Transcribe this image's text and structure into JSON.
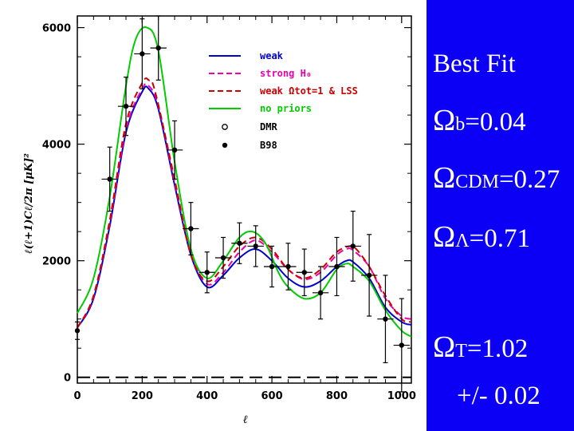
{
  "chart_data": {
    "type": "line",
    "xlabel": "ℓ",
    "ylabel": "ℓ(ℓ+1)Cℓ/2π   [μK]²",
    "xlim": [
      0,
      1030
    ],
    "ylim": [
      -100,
      6200
    ],
    "xticks": [
      0,
      200,
      400,
      600,
      800,
      1000
    ],
    "yticks": [
      0,
      2000,
      4000,
      6000
    ],
    "grid": false,
    "legend_position": "top-right",
    "series": [
      {
        "name": "weak",
        "color": "#0000cc",
        "style": "solid",
        "x": [
          0,
          50,
          100,
          150,
          200,
          220,
          250,
          300,
          350,
          400,
          450,
          500,
          550,
          600,
          650,
          700,
          750,
          800,
          830,
          850,
          900,
          950,
          1000,
          1030
        ],
        "y": [
          850,
          1350,
          2600,
          4200,
          4900,
          4950,
          4600,
          3300,
          2100,
          1550,
          1750,
          2050,
          2200,
          2000,
          1700,
          1550,
          1650,
          1900,
          2000,
          1980,
          1700,
          1200,
          950,
          900
        ]
      },
      {
        "name": "strong H0",
        "color": "#ee00aa",
        "style": "dashed",
        "x": [
          0,
          50,
          100,
          150,
          200,
          220,
          250,
          300,
          350,
          400,
          450,
          500,
          550,
          600,
          650,
          700,
          750,
          800,
          830,
          850,
          900,
          950,
          1000,
          1030
        ],
        "y": [
          850,
          1380,
          2650,
          4250,
          4950,
          5000,
          4650,
          3350,
          2150,
          1600,
          1800,
          2150,
          2350,
          2150,
          1850,
          1680,
          1800,
          2100,
          2200,
          2180,
          1900,
          1350,
          1050,
          1000
        ]
      },
      {
        "name": "weak Ωtot=1 & LSS",
        "color": "#cc0000",
        "style": "dashed",
        "x": [
          0,
          50,
          100,
          150,
          200,
          220,
          240,
          300,
          350,
          400,
          450,
          500,
          550,
          600,
          650,
          700,
          750,
          800,
          840,
          860,
          900,
          950,
          1000,
          1030
        ],
        "y": [
          850,
          1400,
          2700,
          4350,
          5050,
          5100,
          4900,
          3400,
          2100,
          1650,
          1900,
          2250,
          2400,
          2200,
          1850,
          1700,
          1850,
          2150,
          2250,
          2200,
          1900,
          1400,
          1000,
          950
        ]
      },
      {
        "name": "no priors",
        "color": "#00cc00",
        "style": "solid",
        "x": [
          0,
          50,
          100,
          150,
          180,
          215,
          250,
          300,
          350,
          400,
          450,
          500,
          540,
          580,
          620,
          650,
          700,
          750,
          800,
          830,
          850,
          900,
          950,
          1000,
          1030
        ],
        "y": [
          1100,
          1700,
          3100,
          5000,
          5800,
          6000,
          5600,
          3700,
          2200,
          1700,
          2000,
          2400,
          2500,
          2300,
          1800,
          1550,
          1350,
          1450,
          1850,
          1950,
          1900,
          1650,
          1150,
          800,
          700
        ]
      }
    ],
    "markers": [
      {
        "name": "DMR",
        "style": "open-circle"
      },
      {
        "name": "B98",
        "style": "filled-circle",
        "points": [
          {
            "x": 0,
            "y": 800,
            "xerr": 5,
            "yerr": 150
          },
          {
            "x": 100,
            "y": 3400,
            "xerr": 25,
            "yerr": 550
          },
          {
            "x": 150,
            "y": 4650,
            "xerr": 25,
            "yerr": 500
          },
          {
            "x": 200,
            "y": 5550,
            "xerr": 25,
            "yerr": 600
          },
          {
            "x": 250,
            "y": 5650,
            "xerr": 25,
            "yerr": 550
          },
          {
            "x": 300,
            "y": 3900,
            "xerr": 25,
            "yerr": 500
          },
          {
            "x": 350,
            "y": 2550,
            "xerr": 25,
            "yerr": 450
          },
          {
            "x": 400,
            "y": 1800,
            "xerr": 25,
            "yerr": 350
          },
          {
            "x": 450,
            "y": 2050,
            "xerr": 25,
            "yerr": 350
          },
          {
            "x": 500,
            "y": 2300,
            "xerr": 25,
            "yerr": 350
          },
          {
            "x": 550,
            "y": 2250,
            "xerr": 25,
            "yerr": 350
          },
          {
            "x": 600,
            "y": 1900,
            "xerr": 25,
            "yerr": 350
          },
          {
            "x": 650,
            "y": 1900,
            "xerr": 25,
            "yerr": 400
          },
          {
            "x": 700,
            "y": 1800,
            "xerr": 25,
            "yerr": 400
          },
          {
            "x": 750,
            "y": 1450,
            "xerr": 25,
            "yerr": 450
          },
          {
            "x": 800,
            "y": 1900,
            "xerr": 25,
            "yerr": 500
          },
          {
            "x": 850,
            "y": 2250,
            "xerr": 25,
            "yerr": 600
          },
          {
            "x": 900,
            "y": 1750,
            "xerr": 25,
            "yerr": 700
          },
          {
            "x": 950,
            "y": 1000,
            "xerr": 25,
            "yerr": 750
          },
          {
            "x": 1000,
            "y": 550,
            "xerr": 25,
            "yerr": 800
          }
        ]
      }
    ],
    "zero_line": {
      "y": 0,
      "style": "dashed"
    }
  },
  "legend": [
    {
      "label": "weak",
      "color": "#0000cc",
      "kind": "solid-line"
    },
    {
      "label": "strong H₀",
      "color": "#ee00aa",
      "kind": "dashed-line"
    },
    {
      "label": "weak Ωtot=1 & LSS",
      "color": "#cc0000",
      "kind": "dashed-line"
    },
    {
      "label": "no priors",
      "color": "#00cc00",
      "kind": "solid-line"
    },
    {
      "label": "DMR",
      "color": "#000000",
      "kind": "open-circle"
    },
    {
      "label": "B98",
      "color": "#000000",
      "kind": "filled-circle"
    }
  ],
  "side_panel": {
    "background": "#0b00f5",
    "best_fit": "Best Fit",
    "omega_b": {
      "symbol": "Ω",
      "sub": "b",
      "value": "=0.04"
    },
    "omega_cdm": {
      "symbol": "Ω",
      "sub": "CDM",
      "value": "=0.27"
    },
    "omega_lambda": {
      "symbol": "Ω",
      "sub": "Λ",
      "value": "=0.71"
    },
    "omega_t": {
      "symbol": "Ω",
      "sub": "T",
      "value": "=1.02"
    },
    "uncertainty": "+/- 0.02"
  }
}
